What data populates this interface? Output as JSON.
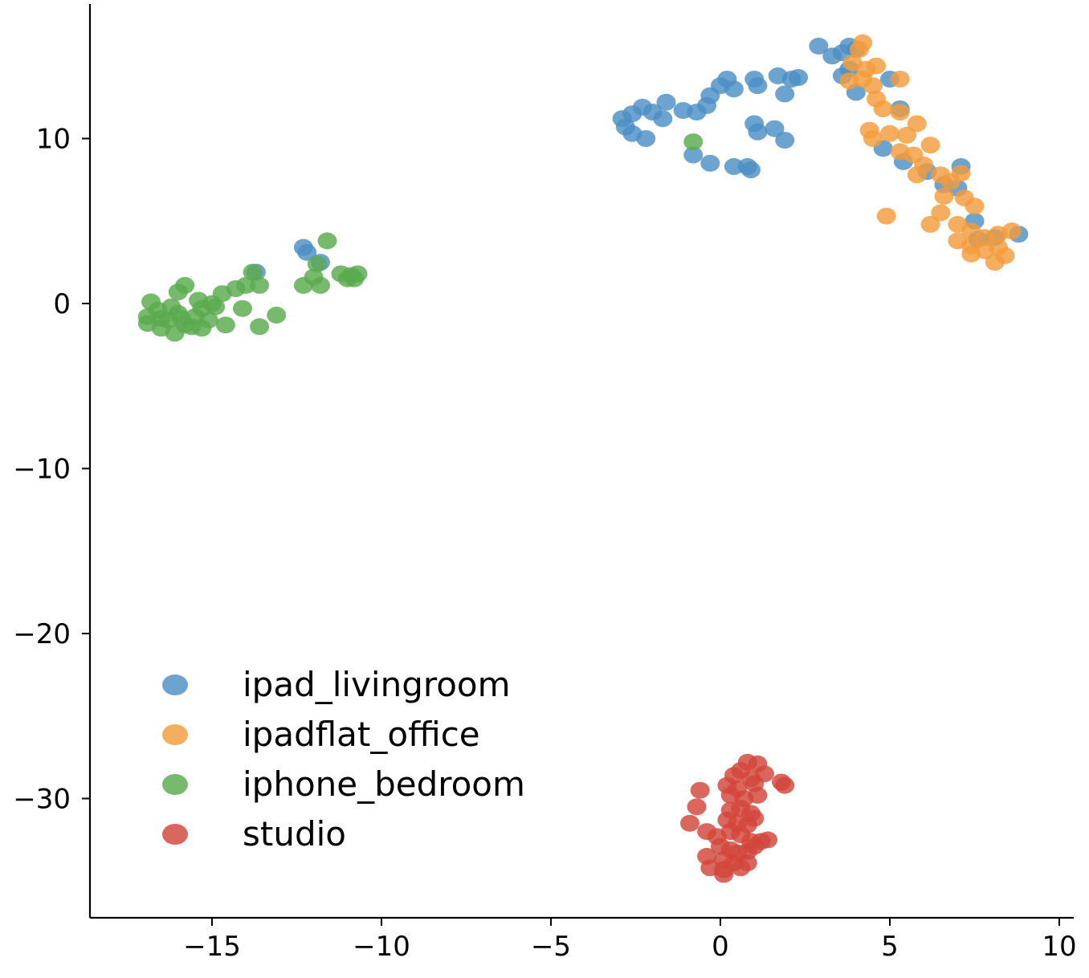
{
  "chart_data": {
    "type": "scatter",
    "title": "",
    "xlabel": "",
    "ylabel": "",
    "xlim": [
      -18.5,
      10.3
    ],
    "ylim": [
      -37.5,
      18.2
    ],
    "xticks": [
      -15,
      -10,
      -5,
      0,
      5,
      10
    ],
    "yticks": [
      10,
      0,
      -10,
      -20,
      -30
    ],
    "xtick_labels": [
      "−15",
      "−10",
      "−5",
      "0",
      "5",
      "10"
    ],
    "ytick_labels": [
      "10",
      "0",
      "−10",
      "−20",
      "−30"
    ],
    "grid": false,
    "legend_position": "lower-left",
    "series": [
      {
        "name": "ipad_livingroom",
        "color": "#4c8fc4",
        "points": [
          [
            2.9,
            15.6
          ],
          [
            3.3,
            15.0
          ],
          [
            3.6,
            15.2
          ],
          [
            3.8,
            15.6
          ],
          [
            4.0,
            15.4
          ],
          [
            3.6,
            13.8
          ],
          [
            3.8,
            14.2
          ],
          [
            4.0,
            12.8
          ],
          [
            5.0,
            13.6
          ],
          [
            5.3,
            11.8
          ],
          [
            4.8,
            9.4
          ],
          [
            5.4,
            8.6
          ],
          [
            6.1,
            8.0
          ],
          [
            6.6,
            7.2
          ],
          [
            7.1,
            8.3
          ],
          [
            7.0,
            7.0
          ],
          [
            7.5,
            5.0
          ],
          [
            7.6,
            3.9
          ],
          [
            8.1,
            4.0
          ],
          [
            8.8,
            4.2
          ],
          [
            -2.9,
            11.2
          ],
          [
            -2.6,
            11.5
          ],
          [
            -2.3,
            11.9
          ],
          [
            -2.0,
            11.6
          ],
          [
            -1.7,
            11.2
          ],
          [
            -2.8,
            10.7
          ],
          [
            -2.6,
            10.3
          ],
          [
            -2.2,
            10.0
          ],
          [
            -1.6,
            12.2
          ],
          [
            -1.1,
            11.7
          ],
          [
            -0.7,
            11.6
          ],
          [
            -0.4,
            12.0
          ],
          [
            -0.3,
            12.6
          ],
          [
            0.0,
            13.2
          ],
          [
            0.2,
            13.6
          ],
          [
            0.4,
            13.0
          ],
          [
            1.0,
            13.6
          ],
          [
            1.1,
            13.2
          ],
          [
            1.7,
            13.8
          ],
          [
            2.1,
            13.6
          ],
          [
            2.3,
            13.7
          ],
          [
            1.9,
            12.7
          ],
          [
            1.0,
            10.9
          ],
          [
            1.1,
            10.4
          ],
          [
            1.6,
            10.6
          ],
          [
            1.9,
            9.9
          ],
          [
            -0.8,
            9.0
          ],
          [
            -0.3,
            8.5
          ],
          [
            0.4,
            8.3
          ],
          [
            0.8,
            8.3
          ],
          [
            0.9,
            8.1
          ],
          [
            -12.3,
            3.4
          ],
          [
            -12.2,
            3.1
          ],
          [
            -11.8,
            2.5
          ],
          [
            -13.7,
            1.9
          ]
        ]
      },
      {
        "name": "ipadflat_office",
        "color": "#f39c3c",
        "points": [
          [
            4.2,
            15.8
          ],
          [
            4.1,
            15.4
          ],
          [
            3.9,
            14.6
          ],
          [
            4.3,
            14.2
          ],
          [
            4.6,
            14.4
          ],
          [
            3.8,
            13.5
          ],
          [
            4.2,
            13.6
          ],
          [
            4.5,
            13.2
          ],
          [
            5.3,
            13.6
          ],
          [
            4.6,
            12.4
          ],
          [
            4.8,
            11.8
          ],
          [
            5.3,
            11.6
          ],
          [
            4.4,
            10.5
          ],
          [
            4.5,
            10.0
          ],
          [
            5.0,
            10.3
          ],
          [
            5.5,
            10.2
          ],
          [
            5.8,
            10.9
          ],
          [
            6.2,
            9.6
          ],
          [
            5.3,
            9.2
          ],
          [
            5.7,
            9.0
          ],
          [
            6.0,
            8.4
          ],
          [
            5.8,
            7.8
          ],
          [
            6.5,
            7.8
          ],
          [
            6.8,
            7.4
          ],
          [
            7.1,
            7.9
          ],
          [
            6.6,
            6.5
          ],
          [
            7.2,
            6.4
          ],
          [
            7.5,
            5.9
          ],
          [
            6.5,
            5.5
          ],
          [
            7.0,
            4.8
          ],
          [
            7.4,
            4.4
          ],
          [
            6.2,
            4.8
          ],
          [
            4.9,
            5.3
          ],
          [
            7.0,
            3.8
          ],
          [
            7.4,
            3.5
          ],
          [
            7.8,
            3.2
          ],
          [
            8.2,
            3.4
          ],
          [
            8.4,
            2.9
          ],
          [
            8.1,
            2.5
          ],
          [
            7.8,
            4.0
          ],
          [
            8.2,
            4.2
          ],
          [
            8.6,
            4.4
          ],
          [
            7.4,
            3.0
          ]
        ]
      },
      {
        "name": "iphone_bedroom",
        "color": "#5aab4d",
        "points": [
          [
            -16.9,
            -0.8
          ],
          [
            -16.6,
            -0.4
          ],
          [
            -16.3,
            -1.0
          ],
          [
            -16.0,
            -0.6
          ],
          [
            -15.8,
            -1.3
          ],
          [
            -15.5,
            -0.8
          ],
          [
            -15.3,
            -0.3
          ],
          [
            -15.1,
            -1.0
          ],
          [
            -14.9,
            -0.2
          ],
          [
            -14.7,
            0.6
          ],
          [
            -16.8,
            0.1
          ],
          [
            -16.5,
            -1.5
          ],
          [
            -16.1,
            -1.8
          ],
          [
            -15.6,
            -1.4
          ],
          [
            -15.4,
            0.2
          ],
          [
            -15.0,
            0.0
          ],
          [
            -14.6,
            -1.3
          ],
          [
            -14.3,
            0.9
          ],
          [
            -14.0,
            1.1
          ],
          [
            -13.6,
            1.1
          ],
          [
            -13.8,
            1.9
          ],
          [
            -14.1,
            -0.3
          ],
          [
            -13.6,
            -1.4
          ],
          [
            -13.1,
            -0.7
          ],
          [
            -12.3,
            1.1
          ],
          [
            -11.8,
            1.1
          ],
          [
            -11.9,
            2.4
          ],
          [
            -11.6,
            3.8
          ],
          [
            -11.2,
            1.8
          ],
          [
            -10.9,
            1.7
          ],
          [
            -10.8,
            1.5
          ],
          [
            -11.0,
            1.5
          ],
          [
            -10.7,
            1.8
          ],
          [
            -12.0,
            1.6
          ],
          [
            -16.0,
            0.7
          ],
          [
            -15.8,
            1.1
          ],
          [
            -16.9,
            -1.2
          ],
          [
            -16.2,
            -0.2
          ],
          [
            -16.5,
            -0.9
          ],
          [
            -15.3,
            -1.5
          ],
          [
            -15.9,
            -0.9
          ],
          [
            -0.8,
            9.8
          ]
        ]
      },
      {
        "name": "studio",
        "color": "#d2463a",
        "points": [
          [
            0.8,
            -27.8
          ],
          [
            1.1,
            -27.9
          ],
          [
            0.6,
            -28.3
          ],
          [
            0.4,
            -28.6
          ],
          [
            0.9,
            -28.8
          ],
          [
            1.3,
            -28.5
          ],
          [
            0.2,
            -29.2
          ],
          [
            0.5,
            -29.4
          ],
          [
            1.0,
            -29.1
          ],
          [
            1.8,
            -29.0
          ],
          [
            1.9,
            -29.2
          ],
          [
            0.3,
            -29.8
          ],
          [
            0.7,
            -30.0
          ],
          [
            1.1,
            -29.8
          ],
          [
            -0.6,
            -29.5
          ],
          [
            -0.7,
            -30.5
          ],
          [
            0.3,
            -30.7
          ],
          [
            0.6,
            -30.6
          ],
          [
            0.9,
            -30.9
          ],
          [
            1.0,
            -31.2
          ],
          [
            0.2,
            -31.3
          ],
          [
            0.5,
            -31.5
          ],
          [
            0.8,
            -31.6
          ],
          [
            -0.9,
            -31.5
          ],
          [
            -0.4,
            -32.0
          ],
          [
            -0.1,
            -32.3
          ],
          [
            0.3,
            -32.0
          ],
          [
            0.6,
            -32.2
          ],
          [
            0.9,
            -32.6
          ],
          [
            1.2,
            -32.6
          ],
          [
            1.4,
            -32.5
          ],
          [
            0.0,
            -32.9
          ],
          [
            0.3,
            -33.1
          ],
          [
            0.5,
            -33.3
          ],
          [
            0.8,
            -33.2
          ],
          [
            1.0,
            -32.9
          ],
          [
            -0.4,
            -33.5
          ],
          [
            0.1,
            -33.7
          ],
          [
            0.4,
            -33.9
          ],
          [
            0.8,
            -33.9
          ],
          [
            -0.3,
            -34.2
          ],
          [
            0.1,
            -34.3
          ],
          [
            0.6,
            -34.2
          ],
          [
            0.1,
            -34.6
          ]
        ]
      }
    ]
  }
}
